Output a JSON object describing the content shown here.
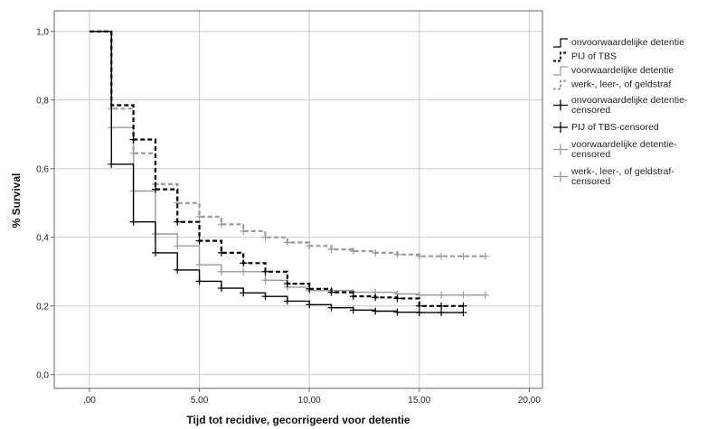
{
  "chart_data": {
    "type": "line",
    "step": true,
    "xlabel": "Tijd tot recidive, gecorrigeerd voor detentie",
    "ylabel": "% Survival",
    "xlim": [
      -1.6,
      20.6
    ],
    "ylim": [
      -0.04,
      1.06
    ],
    "xticks": [
      0,
      5,
      10,
      15,
      20
    ],
    "xtick_labels": [
      ",00",
      "5,00",
      "10,00",
      "15,00",
      "20,00"
    ],
    "yticks": [
      0,
      0.2,
      0.4,
      0.6,
      0.8,
      1.0
    ],
    "ytick_labels": [
      "0,0",
      "0,2",
      "0,4",
      "0,6",
      "0,8",
      "1,0"
    ],
    "grid": true,
    "legend_position": "right",
    "series": [
      {
        "name": "onvoorwaardelijke detentie",
        "censored_name": "onvoorwaardelijke detentie-censored",
        "color": "#000000",
        "dashed": false,
        "x": [
          0,
          1,
          2,
          3,
          4,
          5,
          6,
          7,
          8,
          9,
          10,
          11,
          12,
          13,
          14,
          15,
          16,
          17
        ],
        "y": [
          1.0,
          0.613,
          0.445,
          0.355,
          0.305,
          0.272,
          0.252,
          0.238,
          0.228,
          0.214,
          0.204,
          0.195,
          0.188,
          0.185,
          0.182,
          0.181,
          0.181,
          0.181
        ],
        "censored_x": [
          1,
          2,
          3,
          4,
          5,
          6,
          7,
          8,
          9,
          10,
          11,
          12,
          13,
          14,
          15,
          16,
          17
        ]
      },
      {
        "name": "PIJ of TBS",
        "censored_name": "PIJ of TBS-censored",
        "color": "#000000",
        "dashed": true,
        "x": [
          0,
          1,
          2,
          3,
          4,
          5,
          6,
          7,
          8,
          9,
          10,
          11,
          12,
          13,
          14,
          15,
          16,
          17
        ],
        "y": [
          1.0,
          0.785,
          0.685,
          0.54,
          0.445,
          0.39,
          0.355,
          0.325,
          0.3,
          0.265,
          0.25,
          0.24,
          0.228,
          0.225,
          0.222,
          0.2,
          0.2,
          0.2
        ],
        "censored_x": [
          2,
          3,
          4,
          5,
          6,
          7,
          8,
          9,
          10,
          11,
          12,
          13,
          14,
          15,
          16,
          17
        ]
      },
      {
        "name": "voorwaardelijke detentie",
        "censored_name": "voorwaardelijke detentie-censored",
        "color": "#9a9a9a",
        "dashed": false,
        "x": [
          0,
          1,
          2,
          3,
          4,
          5,
          6,
          7,
          8,
          9,
          10,
          11,
          12,
          13,
          14,
          15,
          16,
          17,
          18
        ],
        "y": [
          1.0,
          0.72,
          0.535,
          0.41,
          0.375,
          0.32,
          0.3,
          0.3,
          0.275,
          0.255,
          0.245,
          0.245,
          0.24,
          0.24,
          0.235,
          0.232,
          0.232,
          0.232,
          0.232
        ],
        "censored_x": [
          1,
          2,
          3,
          4,
          5,
          6,
          7,
          8,
          9,
          10,
          11,
          12,
          13,
          14,
          15,
          16,
          17,
          18
        ]
      },
      {
        "name": "werk-, leer-, of geldstraf",
        "censored_name": "werk-, leer-, of geldstraf-censored",
        "color": "#9a9a9a",
        "dashed": true,
        "x": [
          0,
          1,
          2,
          3,
          4,
          5,
          6,
          7,
          8,
          9,
          10,
          11,
          12,
          13,
          14,
          15,
          16,
          17,
          18
        ],
        "y": [
          1.0,
          0.775,
          0.645,
          0.555,
          0.5,
          0.46,
          0.438,
          0.418,
          0.4,
          0.385,
          0.375,
          0.365,
          0.36,
          0.355,
          0.35,
          0.345,
          0.345,
          0.345,
          0.345
        ],
        "censored_x": [
          1,
          2,
          3,
          4,
          5,
          6,
          7,
          8,
          9,
          10,
          11,
          12,
          13,
          14,
          15,
          16,
          17,
          18
        ]
      }
    ]
  }
}
